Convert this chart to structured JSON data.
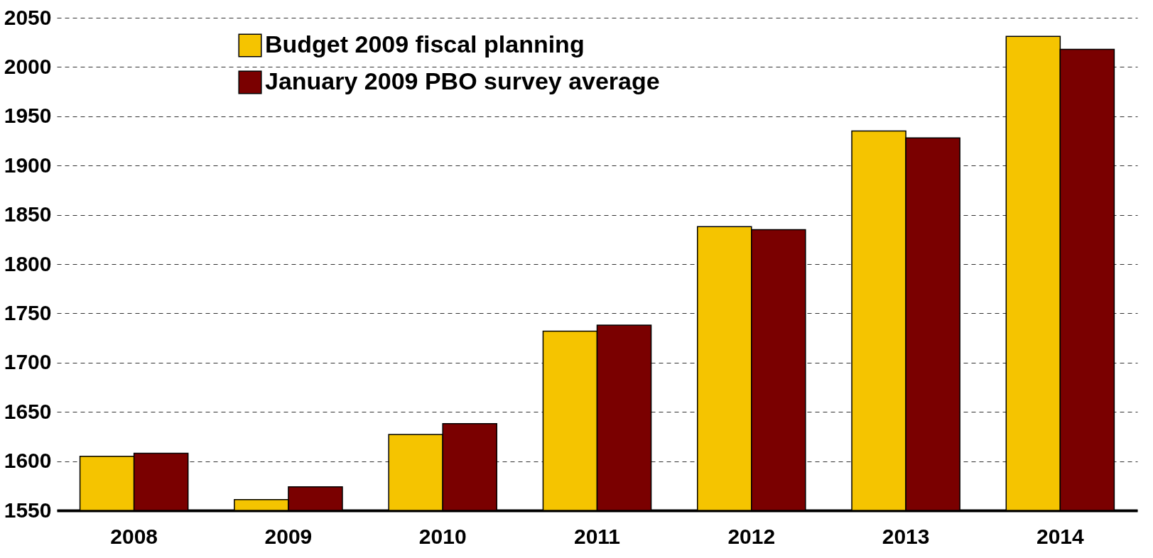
{
  "chart_data": {
    "type": "bar",
    "categories": [
      "2008",
      "2009",
      "2010",
      "2011",
      "2012",
      "2013",
      "2014"
    ],
    "series": [
      {
        "name": "Budget 2009 fiscal planning",
        "color": "#f5c400",
        "values": [
          1605,
          1561,
          1627,
          1732,
          1838,
          1935,
          2031
        ]
      },
      {
        "name": "January 2009 PBO survey average",
        "color": "#7a0000",
        "values": [
          1608,
          1574,
          1638,
          1738,
          1835,
          1928,
          2018
        ]
      }
    ],
    "ylim": [
      1550,
      2050
    ],
    "yticks": [
      1550,
      1600,
      1650,
      1700,
      1750,
      1800,
      1850,
      1900,
      1950,
      2000,
      2050
    ],
    "grid": "y",
    "legend": "top left"
  }
}
